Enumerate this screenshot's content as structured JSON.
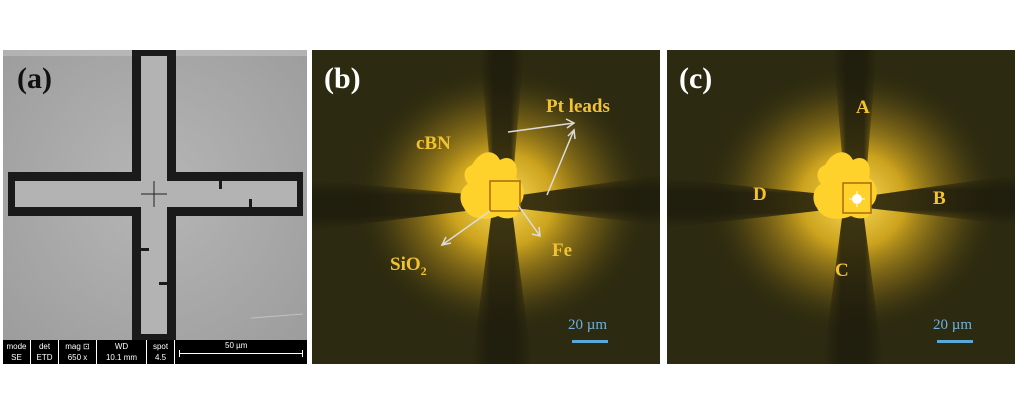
{
  "panel_a": {
    "label": "(a)",
    "info_bar": {
      "fields": [
        {
          "header": "mode",
          "value": "SE"
        },
        {
          "header": "det",
          "value": "ETD"
        },
        {
          "header": "mag ⊡",
          "value": "650 x"
        },
        {
          "header": "WD",
          "value": "10.1 mm"
        },
        {
          "header": "spot",
          "value": "4.5"
        }
      ],
      "scale_label": "50 µm"
    }
  },
  "panel_b": {
    "label": "(b)",
    "annotations": {
      "pt_leads": "Pt leads",
      "cbn": "cBN",
      "sio2_base": "SiO",
      "sio2_sub": "2",
      "fe": "Fe"
    },
    "scale_label": "20 µm"
  },
  "panel_c": {
    "label": "(c)",
    "annotations": {
      "a": "A",
      "b": "B",
      "c": "C",
      "d": "D"
    },
    "scale_label": "20 µm"
  },
  "colors": {
    "annotation": "#f2c230",
    "scale_bar": "#5aa8d8",
    "sem_background": "#a9a9a9",
    "optical_background": "#2c2a10",
    "glow": "#f0c020"
  }
}
